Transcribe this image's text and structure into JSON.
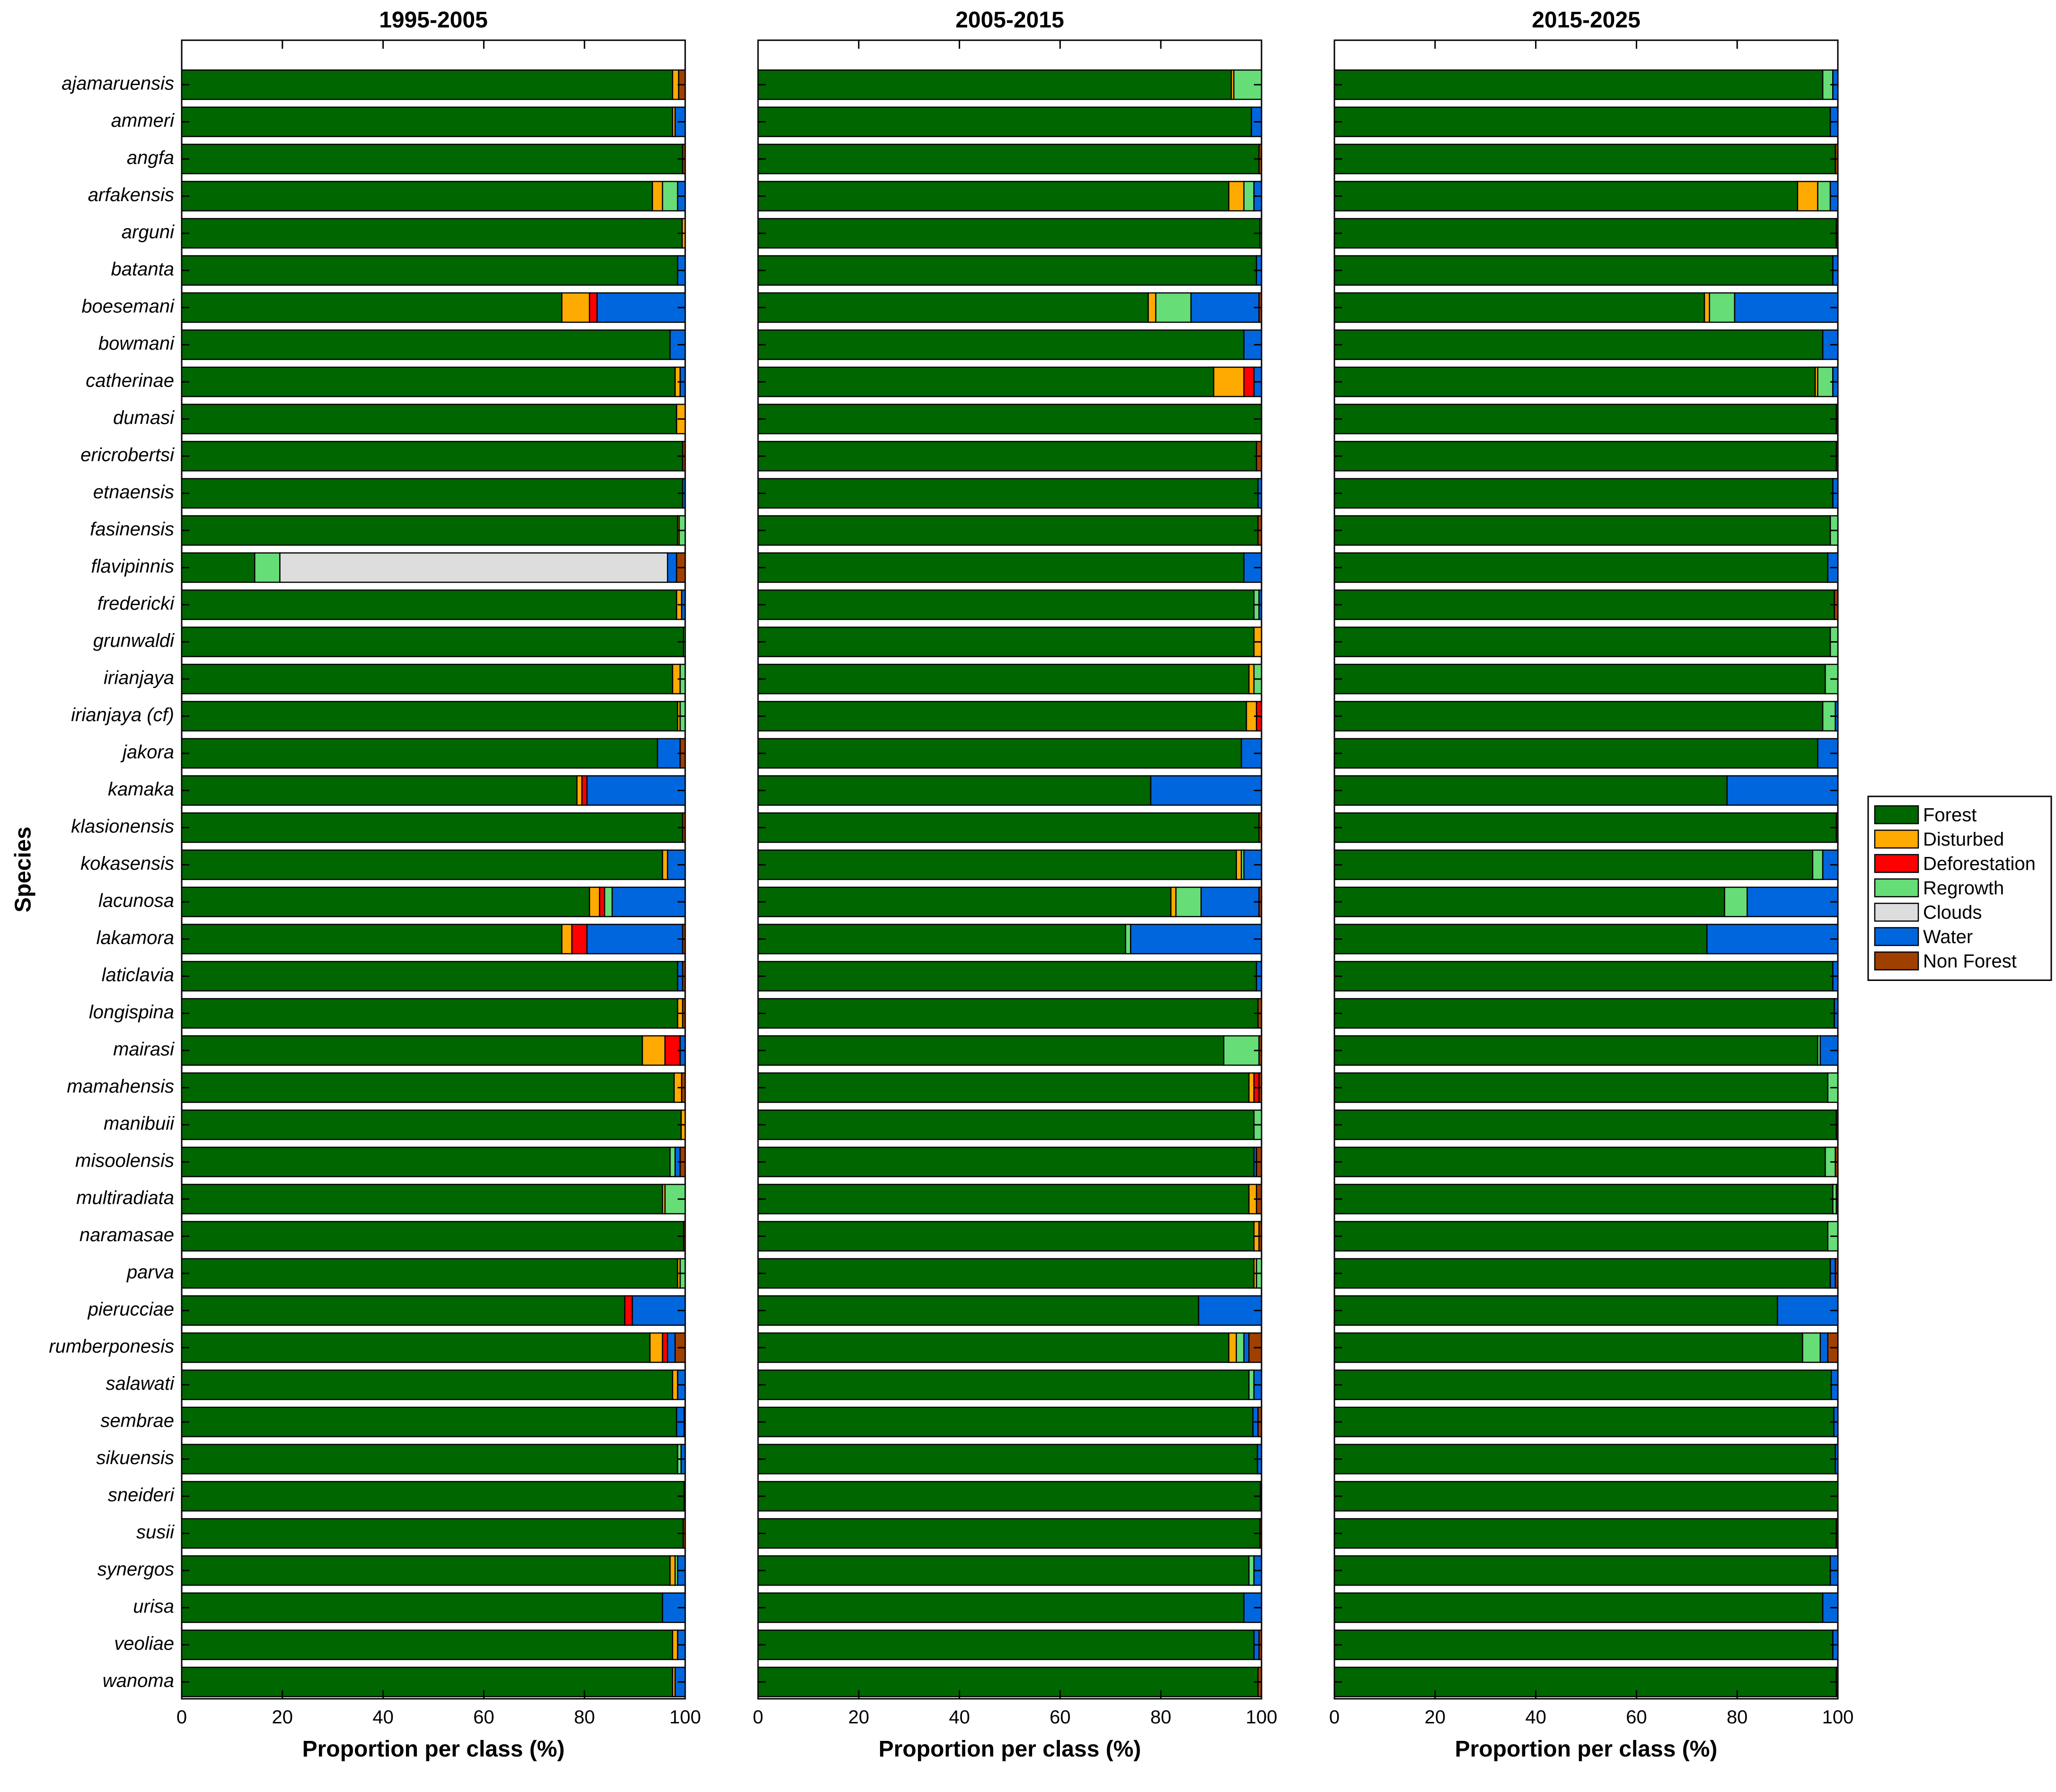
{
  "chart_data": {
    "type": "bar",
    "orientation": "horizontal-stacked",
    "ylabel": "Species",
    "xlabel": "Proportion per class (%)",
    "xlim": [
      0,
      100
    ],
    "xticks": [
      0,
      20,
      40,
      60,
      80,
      100
    ],
    "grid": false,
    "legend": "right",
    "classes": [
      {
        "name": "Forest",
        "color": "#006600"
      },
      {
        "name": "Disturbed",
        "color": "#ffaa00"
      },
      {
        "name": "Deforestation",
        "color": "#ff0000"
      },
      {
        "name": "Regrowth",
        "color": "#66dd77"
      },
      {
        "name": "Clouds",
        "color": "#dddddd"
      },
      {
        "name": "Water",
        "color": "#0066dd"
      },
      {
        "name": "Non Forest",
        "color": "#a04000"
      }
    ],
    "species": [
      "ajamaruensis",
      "ammeri",
      "angfa",
      "arfakensis",
      "arguni",
      "batanta",
      "boesemani",
      "bowmani",
      "catherinae",
      "dumasi",
      "ericrobertsi",
      "etnaensis",
      "fasinensis",
      "flavipinnis",
      "fredericki",
      "grunwaldi",
      "irianjaya",
      "irianjaya (cf)",
      "jakora",
      "kamaka",
      "klasionensis",
      "kokasensis",
      "lacunosa",
      "lakamora",
      "laticlavia",
      "longispina",
      "mairasi",
      "mamahensis",
      "manibuii",
      "misoolensis",
      "multiradiata",
      "naramasae",
      "parva",
      "pierucciae",
      "rumberponesis",
      "salawati",
      "sembrae",
      "sikuensis",
      "sneideri",
      "susii",
      "synergos",
      "urisa",
      "veoliae",
      "wanoma"
    ],
    "panels": [
      {
        "title": "1995-2005",
        "values": [
          [
            97.5,
            1.2,
            0,
            0,
            0,
            0,
            1.3
          ],
          [
            97.5,
            0.5,
            0,
            0,
            0,
            2.0,
            0
          ],
          [
            99.5,
            0,
            0,
            0,
            0,
            0,
            0.5
          ],
          [
            93.5,
            2.0,
            0,
            3.0,
            0,
            1.5,
            0
          ],
          [
            99.4,
            0.6,
            0,
            0,
            0,
            0,
            0
          ],
          [
            98.5,
            0,
            0,
            0,
            0,
            1.5,
            0
          ],
          [
            75.5,
            5.5,
            1.5,
            0,
            0,
            17.5,
            0
          ],
          [
            97.0,
            0,
            0,
            0,
            0,
            3.0,
            0
          ],
          [
            98.0,
            1.0,
            0,
            0,
            0,
            1.0,
            0
          ],
          [
            98.3,
            1.7,
            0,
            0,
            0,
            0,
            0
          ],
          [
            99.5,
            0,
            0,
            0,
            0,
            0,
            0.5
          ],
          [
            99.5,
            0,
            0,
            0,
            0,
            0.5,
            0
          ],
          [
            98.5,
            0.3,
            0,
            1.2,
            0,
            0,
            0
          ],
          [
            14.5,
            0,
            0,
            5.0,
            77.0,
            1.8,
            1.7
          ],
          [
            98.3,
            1.0,
            0,
            0,
            0,
            0.7,
            0
          ],
          [
            99.7,
            0,
            0,
            0.3,
            0,
            0,
            0
          ],
          [
            97.5,
            1.5,
            0,
            1.0,
            0,
            0,
            0
          ],
          [
            98.5,
            0.5,
            0,
            1.0,
            0,
            0,
            0
          ],
          [
            94.5,
            0,
            0,
            0,
            0,
            4.5,
            1.0
          ],
          [
            78.5,
            1.0,
            1.0,
            0,
            0,
            19.5,
            0
          ],
          [
            99.5,
            0,
            0,
            0,
            0,
            0,
            0.5
          ],
          [
            95.5,
            1.0,
            0,
            0,
            0,
            3.5,
            0
          ],
          [
            81.0,
            2.0,
            1.0,
            1.5,
            0,
            14.5,
            0
          ],
          [
            75.5,
            2.0,
            3.0,
            0,
            0,
            19.0,
            0.5
          ],
          [
            98.5,
            0,
            0,
            0,
            0,
            1.0,
            0.5
          ],
          [
            98.5,
            1.0,
            0,
            0,
            0,
            0,
            0.5
          ],
          [
            91.5,
            4.5,
            3.0,
            0,
            0,
            1.0,
            0
          ],
          [
            97.8,
            1.5,
            0,
            0,
            0,
            0,
            0.7
          ],
          [
            99.2,
            0.8,
            0,
            0,
            0,
            0,
            0
          ],
          [
            97.0,
            0,
            0,
            1.0,
            0,
            1.0,
            1.0
          ],
          [
            95.5,
            0.5,
            0,
            4.0,
            0,
            0,
            0
          ],
          [
            99.7,
            0,
            0,
            0,
            0,
            0,
            0.3
          ],
          [
            98.5,
            0.5,
            0,
            1.0,
            0,
            0,
            0
          ],
          [
            88.0,
            0,
            1.5,
            0,
            0,
            10.5,
            0
          ],
          [
            93.0,
            2.5,
            1.0,
            0,
            0,
            1.5,
            2.0
          ],
          [
            97.5,
            1.0,
            0,
            0,
            0,
            1.5,
            0
          ],
          [
            98.3,
            0,
            0,
            0,
            0,
            1.5,
            0.2
          ],
          [
            98.5,
            0,
            0,
            0.7,
            0,
            0.8,
            0
          ],
          [
            99.8,
            0,
            0,
            0,
            0,
            0,
            0.2
          ],
          [
            99.6,
            0,
            0,
            0,
            0,
            0,
            0.4
          ],
          [
            97.0,
            1.0,
            0,
            0.5,
            0,
            1.5,
            0
          ],
          [
            95.5,
            0,
            0,
            0,
            0,
            4.5,
            0
          ],
          [
            97.5,
            1.0,
            0,
            0,
            0,
            1.5,
            0
          ],
          [
            97.5,
            0.5,
            0,
            0,
            0,
            2.0,
            0
          ]
        ]
      },
      {
        "title": "2005-2015",
        "values": [
          [
            94.0,
            0.5,
            0,
            5.5,
            0,
            0,
            0
          ],
          [
            98.0,
            0,
            0,
            0,
            0,
            2.0,
            0
          ],
          [
            99.5,
            0,
            0,
            0,
            0,
            0,
            0.5
          ],
          [
            93.5,
            3.0,
            0,
            2.0,
            0,
            1.5,
            0
          ],
          [
            99.7,
            0,
            0,
            0.3,
            0,
            0,
            0
          ],
          [
            99.0,
            0,
            0,
            0,
            0,
            1.0,
            0
          ],
          [
            77.5,
            1.5,
            0,
            7.0,
            0,
            13.5,
            0.5
          ],
          [
            96.5,
            0,
            0,
            0,
            0,
            3.5,
            0
          ],
          [
            90.5,
            6.0,
            2.0,
            0,
            0,
            1.5,
            0
          ],
          [
            100,
            0,
            0,
            0,
            0,
            0,
            0
          ],
          [
            99.0,
            0,
            0,
            0,
            0,
            0,
            1.0
          ],
          [
            99.3,
            0,
            0,
            0,
            0,
            0.7,
            0
          ],
          [
            99.3,
            0,
            0,
            0,
            0,
            0,
            0.7
          ],
          [
            96.5,
            0,
            0,
            0,
            0,
            3.5,
            0
          ],
          [
            98.5,
            0,
            0,
            1.0,
            0,
            0.5,
            0
          ],
          [
            98.5,
            1.5,
            0,
            0,
            0,
            0,
            0
          ],
          [
            97.5,
            1.0,
            0,
            1.5,
            0,
            0,
            0
          ],
          [
            97.0,
            2.0,
            1.0,
            0,
            0,
            0,
            0
          ],
          [
            96.0,
            0,
            0,
            0,
            0,
            4.0,
            0
          ],
          [
            78.0,
            0,
            0,
            0,
            0,
            22.0,
            0
          ],
          [
            99.5,
            0,
            0,
            0,
            0,
            0,
            0.5
          ],
          [
            95.0,
            1.0,
            0,
            0.5,
            0,
            3.5,
            0
          ],
          [
            82.0,
            1.0,
            0,
            5.0,
            0,
            11.5,
            0.5
          ],
          [
            73.0,
            0,
            0,
            1.0,
            0,
            26.0,
            0
          ],
          [
            99.0,
            0,
            0,
            0,
            0,
            1.0,
            0
          ],
          [
            99.3,
            0,
            0,
            0,
            0,
            0,
            0.7
          ],
          [
            92.5,
            0,
            0,
            7.0,
            0,
            0,
            0.5
          ],
          [
            97.5,
            1.0,
            1.0,
            0,
            0,
            0,
            0.5
          ],
          [
            98.5,
            0,
            0,
            1.5,
            0,
            0,
            0
          ],
          [
            98.5,
            0,
            0,
            0,
            0,
            0.5,
            1.0
          ],
          [
            97.5,
            1.5,
            0,
            0,
            0,
            0,
            1.0
          ],
          [
            98.5,
            1.0,
            0,
            0,
            0,
            0,
            0.5
          ],
          [
            98.5,
            0.5,
            0,
            1.0,
            0,
            0,
            0
          ],
          [
            87.5,
            0,
            0,
            0,
            0,
            12.5,
            0
          ],
          [
            93.5,
            1.5,
            0,
            1.5,
            0,
            1.0,
            2.5
          ],
          [
            97.5,
            0,
            0,
            1.0,
            0,
            1.5,
            0
          ],
          [
            98.3,
            0,
            0,
            0,
            0,
            1.0,
            0.7
          ],
          [
            99.2,
            0,
            0,
            0,
            0,
            0.8,
            0
          ],
          [
            99.8,
            0,
            0,
            0,
            0,
            0,
            0.2
          ],
          [
            99.7,
            0,
            0,
            0,
            0,
            0,
            0.3
          ],
          [
            97.5,
            0,
            0,
            1.0,
            0,
            1.5,
            0
          ],
          [
            96.5,
            0,
            0,
            0,
            0,
            3.5,
            0
          ],
          [
            98.5,
            0,
            0,
            0,
            0,
            1.0,
            0.5
          ],
          [
            99.3,
            0,
            0,
            0,
            0,
            0,
            0.7
          ]
        ]
      },
      {
        "title": "2015-2025",
        "values": [
          [
            97.0,
            0,
            0,
            2.0,
            0,
            1.0,
            0
          ],
          [
            98.5,
            0,
            0,
            0,
            0,
            1.5,
            0
          ],
          [
            99.5,
            0,
            0,
            0,
            0,
            0,
            0.5
          ],
          [
            92.0,
            4.0,
            0,
            2.5,
            0,
            1.5,
            0
          ],
          [
            99.7,
            0,
            0,
            0,
            0,
            0,
            0.3
          ],
          [
            99.0,
            0,
            0,
            0,
            0,
            1.0,
            0
          ],
          [
            73.5,
            1.0,
            0,
            5.0,
            0,
            20.5,
            0
          ],
          [
            97.0,
            0,
            0,
            0,
            0,
            3.0,
            0
          ],
          [
            95.5,
            0.5,
            0,
            3.0,
            0,
            1.0,
            0
          ],
          [
            99.7,
            0,
            0,
            0,
            0,
            0,
            0.3
          ],
          [
            99.7,
            0,
            0,
            0,
            0,
            0,
            0.3
          ],
          [
            99.0,
            0,
            0,
            0,
            0,
            1.0,
            0
          ],
          [
            98.5,
            0,
            0,
            1.5,
            0,
            0,
            0
          ],
          [
            98.0,
            0,
            0,
            0,
            0,
            2.0,
            0
          ],
          [
            99.3,
            0,
            0,
            0,
            0,
            0,
            0.7
          ],
          [
            98.5,
            0,
            0,
            1.5,
            0,
            0,
            0
          ],
          [
            97.5,
            0,
            0,
            2.5,
            0,
            0,
            0
          ],
          [
            97.0,
            0,
            0,
            2.5,
            0,
            0.5,
            0
          ],
          [
            96.0,
            0,
            0,
            0,
            0,
            4.0,
            0
          ],
          [
            78.0,
            0,
            0,
            0,
            0,
            22.0,
            0
          ],
          [
            99.7,
            0,
            0,
            0,
            0,
            0,
            0.3
          ],
          [
            95.0,
            0,
            0,
            2.0,
            0,
            3.0,
            0
          ],
          [
            77.5,
            0,
            0,
            4.5,
            0,
            18.0,
            0
          ],
          [
            74.0,
            0,
            0,
            0,
            0,
            26.0,
            0
          ],
          [
            99.0,
            0,
            0,
            0,
            0,
            1.0,
            0
          ],
          [
            99.3,
            0,
            0,
            0,
            0,
            0.7,
            0
          ],
          [
            96.0,
            0,
            0,
            0.5,
            0,
            3.5,
            0
          ],
          [
            98.0,
            0,
            0,
            2.0,
            0,
            0,
            0
          ],
          [
            99.7,
            0,
            0,
            0,
            0,
            0,
            0.3
          ],
          [
            97.5,
            0,
            0,
            2.0,
            0,
            0,
            0.5
          ],
          [
            99.0,
            0,
            0,
            0.7,
            0,
            0,
            0.3
          ],
          [
            98.0,
            0,
            0,
            2.0,
            0,
            0,
            0
          ],
          [
            98.5,
            0,
            0,
            0,
            0,
            1.0,
            0.5
          ],
          [
            88.0,
            0,
            0,
            0,
            0,
            12.0,
            0
          ],
          [
            93.0,
            0,
            0,
            3.5,
            0,
            1.5,
            2.0
          ],
          [
            98.7,
            0,
            0,
            0,
            0,
            1.3,
            0
          ],
          [
            99.2,
            0,
            0,
            0,
            0,
            0.8,
            0
          ],
          [
            99.5,
            0,
            0,
            0,
            0,
            0.5,
            0
          ],
          [
            100,
            0,
            0,
            0,
            0,
            0,
            0
          ],
          [
            99.7,
            0,
            0,
            0,
            0,
            0,
            0.3
          ],
          [
            98.5,
            0,
            0,
            0,
            0,
            1.5,
            0
          ],
          [
            97.0,
            0,
            0,
            0,
            0,
            3.0,
            0
          ],
          [
            99.0,
            0,
            0,
            0,
            0,
            1.0,
            0
          ],
          [
            99.7,
            0,
            0,
            0,
            0,
            0,
            0.3
          ]
        ]
      }
    ]
  }
}
